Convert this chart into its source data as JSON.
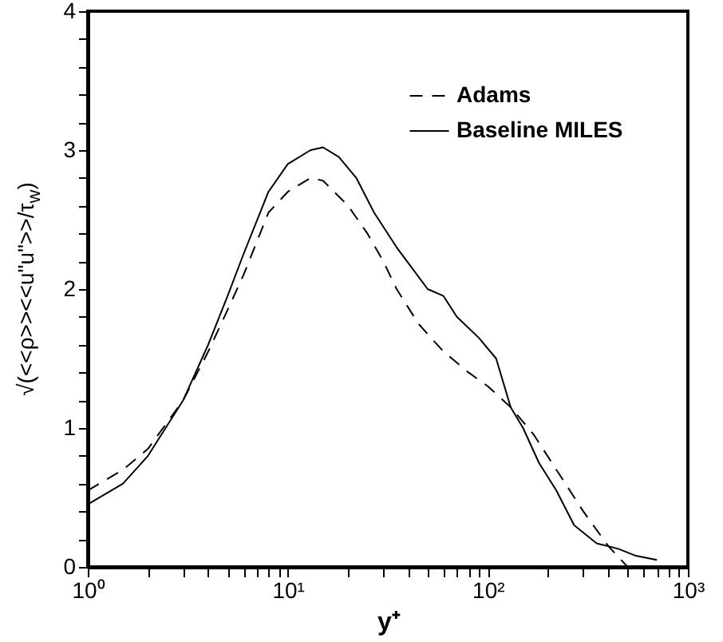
{
  "chart_data": {
    "type": "line",
    "xlabel": "y⁺",
    "ylabel": "√(<<ρ>><<u\"u\">>/τ$_{w}$)",
    "log": "x",
    "grid": false,
    "legend": "top right",
    "marker": "none",
    "xlim": [
      1,
      1000
    ],
    "ylim": [
      0,
      4
    ],
    "xticks": [
      {
        "value": 1,
        "label": "10⁰"
      },
      {
        "value": 2,
        "label": null
      },
      {
        "value": 3,
        "label": null
      },
      {
        "value": 4,
        "label": null
      },
      {
        "value": 5,
        "label": null
      },
      {
        "value": 6,
        "label": null
      },
      {
        "value": 7,
        "label": null
      },
      {
        "value": 8,
        "label": null
      },
      {
        "value": 9,
        "label": null
      },
      {
        "value": 10,
        "label": "10¹"
      },
      {
        "value": 20,
        "label": null
      },
      {
        "value": 30,
        "label": null
      },
      {
        "value": 40,
        "label": null
      },
      {
        "value": 50,
        "label": null
      },
      {
        "value": 60,
        "label": null
      },
      {
        "value": 70,
        "label": null
      },
      {
        "value": 80,
        "label": null
      },
      {
        "value": 90,
        "label": null
      },
      {
        "value": 100,
        "label": "10²"
      },
      {
        "value": 200,
        "label": null
      },
      {
        "value": 300,
        "label": null
      },
      {
        "value": 400,
        "label": null
      },
      {
        "value": 500,
        "label": null
      },
      {
        "value": 600,
        "label": null
      },
      {
        "value": 700,
        "label": null
      },
      {
        "value": 800,
        "label": null
      },
      {
        "value": 900,
        "label": null
      },
      {
        "value": 1000,
        "label": "10³"
      }
    ],
    "yticks": [
      0,
      {
        "value": 0.2,
        "label": null
      },
      {
        "value": 0.4,
        "label": null
      },
      {
        "value": 0.6,
        "label": null
      },
      {
        "value": 0.8,
        "label": null
      },
      1,
      {
        "value": 1.2,
        "label": null
      },
      {
        "value": 1.4,
        "label": null
      },
      {
        "value": 1.6,
        "label": null
      },
      {
        "value": 1.8,
        "label": null
      },
      2,
      {
        "value": 2.2,
        "label": null
      },
      {
        "value": 2.4,
        "label": null
      },
      {
        "value": 2.6,
        "label": null
      },
      {
        "value": 2.8,
        "label": null
      },
      3,
      {
        "value": 3.2,
        "label": null
      },
      {
        "value": 3.4,
        "label": null
      },
      {
        "value": 3.6,
        "label": null
      },
      {
        "value": 3.8,
        "label": null
      },
      4
    ],
    "series": [
      {
        "name": "Adams",
        "color": "#000000",
        "line_style": "dashed",
        "x": [
          1,
          1.5,
          2,
          3,
          4,
          5,
          6,
          8,
          10,
          13,
          15,
          20,
          25,
          30,
          35,
          45,
          60,
          80,
          100,
          130,
          170,
          220,
          300,
          400,
          500
        ],
        "values": [
          0.55,
          0.7,
          0.85,
          1.2,
          1.55,
          1.85,
          2.1,
          2.55,
          2.7,
          2.8,
          2.78,
          2.6,
          2.4,
          2.2,
          2.0,
          1.75,
          1.55,
          1.4,
          1.3,
          1.15,
          0.95,
          0.7,
          0.4,
          0.15,
          0
        ]
      },
      {
        "name": "Baseline MILES",
        "color": "#000000",
        "line_style": "solid",
        "x": [
          1,
          1.5,
          2,
          3,
          4,
          5,
          6,
          8,
          10,
          13,
          15,
          18,
          22,
          27,
          35,
          50,
          60,
          70,
          90,
          110,
          130,
          150,
          180,
          220,
          270,
          350,
          450,
          550,
          700
        ],
        "values": [
          0.45,
          0.6,
          0.8,
          1.2,
          1.6,
          1.95,
          2.25,
          2.7,
          2.9,
          3.0,
          3.02,
          2.95,
          2.8,
          2.55,
          2.3,
          2.0,
          1.95,
          1.8,
          1.65,
          1.5,
          1.15,
          1.0,
          0.75,
          0.55,
          0.3,
          0.17,
          0.13,
          0.08,
          0.05
        ]
      }
    ]
  }
}
